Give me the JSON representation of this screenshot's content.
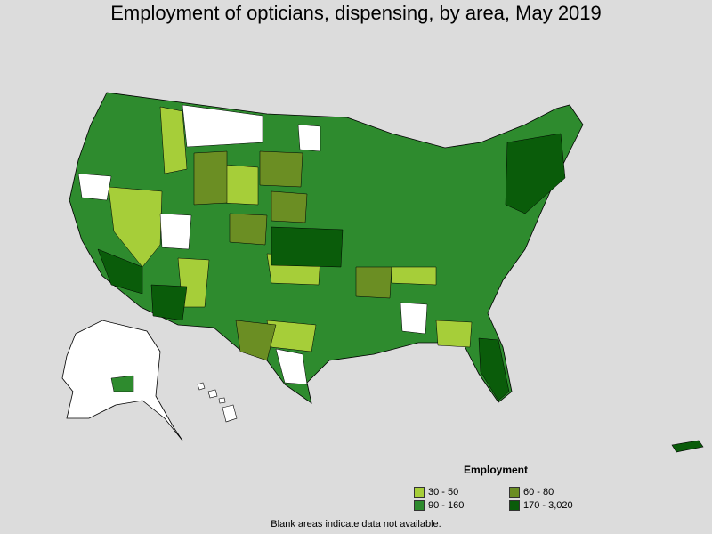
{
  "title": "Employment of opticians, dispensing, by area, May 2019",
  "legend": {
    "title": "Employment",
    "items": [
      {
        "label": "30 - 50",
        "color": "#a6ce39"
      },
      {
        "label": "60 - 80",
        "color": "#6b8e23"
      },
      {
        "label": "90 - 160",
        "color": "#2e8b2e"
      },
      {
        "label": "170 - 3,020",
        "color": "#0a5c0a"
      }
    ]
  },
  "footnote": "Blank areas indicate data not available.",
  "colors": {
    "background": "#dcdcdc",
    "no_data": "#ffffff",
    "border": "#000000"
  }
}
